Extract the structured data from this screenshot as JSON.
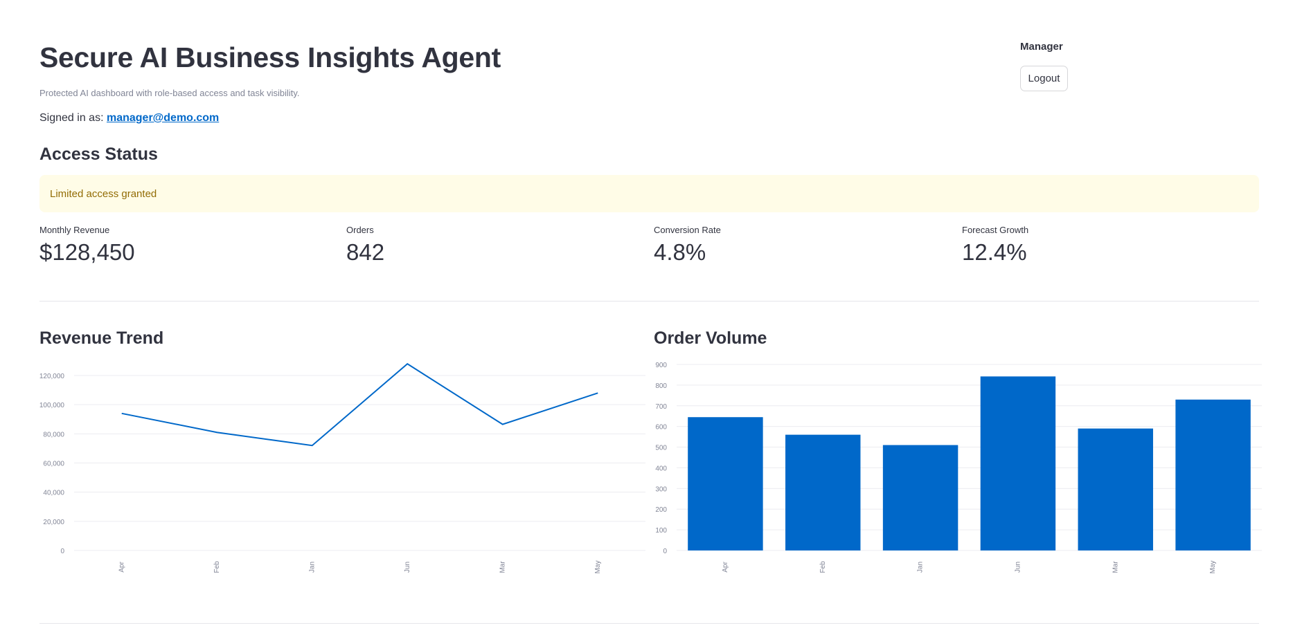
{
  "header": {
    "title": "Secure AI Business Insights Agent",
    "subtitle": "Protected AI dashboard with role-based access and task visibility.",
    "signed_in_prefix": "Signed in as:",
    "signed_in_email": "manager@demo.com"
  },
  "user": {
    "role": "Manager",
    "logout_label": "Logout"
  },
  "access": {
    "heading": "Access Status",
    "message": "Limited access granted",
    "colors": {
      "background": "#fffce7",
      "text": "#926c05"
    }
  },
  "metrics": [
    {
      "label": "Monthly Revenue",
      "value": "$128,450"
    },
    {
      "label": "Orders",
      "value": "842"
    },
    {
      "label": "Conversion Rate",
      "value": "4.8%"
    },
    {
      "label": "Forecast Growth",
      "value": "12.4%"
    }
  ],
  "chart_data": [
    {
      "type": "line",
      "title": "Revenue Trend",
      "categories": [
        "Apr",
        "Feb",
        "Jan",
        "Jun",
        "Mar",
        "May"
      ],
      "values": [
        94000,
        81000,
        72000,
        128000,
        86500,
        108000
      ],
      "ylim": [
        0,
        130000
      ],
      "yticks": [
        0,
        20000,
        40000,
        60000,
        80000,
        100000,
        120000
      ],
      "ytick_labels": [
        "0",
        "20,000",
        "40,000",
        "60,000",
        "80,000",
        "100,000",
        "120,000"
      ],
      "grid": true,
      "color": "#0068c9"
    },
    {
      "type": "bar",
      "title": "Order Volume",
      "categories": [
        "Apr",
        "Feb",
        "Jan",
        "Jun",
        "Mar",
        "May"
      ],
      "values": [
        645,
        560,
        510,
        842,
        590,
        730
      ],
      "ylim": [
        0,
        900
      ],
      "yticks": [
        0,
        100,
        200,
        300,
        400,
        500,
        600,
        700,
        800,
        900
      ],
      "ytick_labels": [
        "0",
        "100",
        "200",
        "300",
        "400",
        "500",
        "600",
        "700",
        "800",
        "900"
      ],
      "grid": true,
      "color": "#0068c9"
    }
  ]
}
